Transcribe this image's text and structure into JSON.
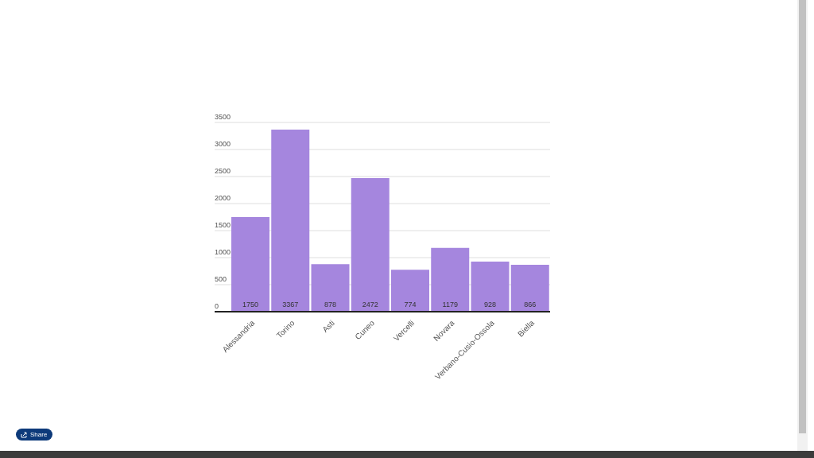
{
  "chart_data": {
    "type": "bar",
    "categories": [
      "Alessandria",
      "Torino",
      "Asti",
      "Cuneo",
      "Vercelli",
      "Novara",
      "Verbano-Cusio-Ossola",
      "Biella"
    ],
    "values": [
      1750,
      3367,
      878,
      2472,
      774,
      1179,
      928,
      866
    ],
    "color": "#a586de",
    "ylim": [
      0,
      3500
    ],
    "yticks": [
      0,
      500,
      1000,
      1500,
      2000,
      2500,
      3000,
      3500
    ],
    "grid": "y",
    "data_labels": true,
    "annotations": [
      "Share"
    ]
  }
}
